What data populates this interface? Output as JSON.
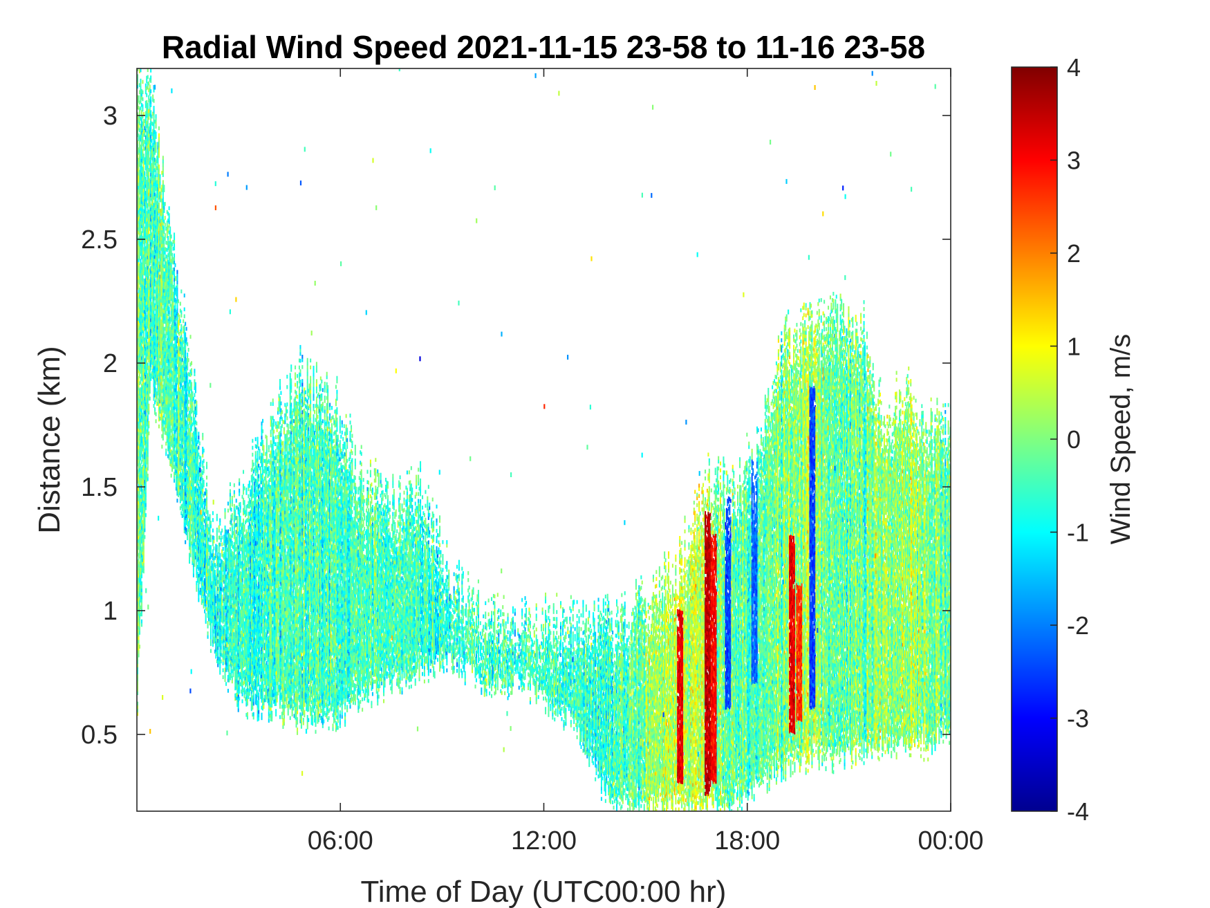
{
  "chart_data": {
    "type": "heatmap",
    "title": "Radial Wind Speed 2021-11-15 23-58 to 11-16 23-58",
    "xlabel": "Time of Day (UTC00:00 hr)",
    "ylabel": "Distance (km)",
    "colorbar_label": "Wind Speed, m/s",
    "x_ticks": [
      {
        "value": 6,
        "label": "06:00"
      },
      {
        "value": 12,
        "label": "12:00"
      },
      {
        "value": 18,
        "label": "18:00"
      },
      {
        "value": 24,
        "label": "00:00"
      }
    ],
    "y_ticks": [
      {
        "value": 0.5,
        "label": "0.5"
      },
      {
        "value": 1,
        "label": "1"
      },
      {
        "value": 1.5,
        "label": "1.5"
      },
      {
        "value": 2,
        "label": "2"
      },
      {
        "value": 2.5,
        "label": "2.5"
      },
      {
        "value": 3,
        "label": "3"
      }
    ],
    "colorbar_ticks": [
      {
        "value": -4,
        "label": "-4"
      },
      {
        "value": -3,
        "label": "-3"
      },
      {
        "value": -2,
        "label": "-2"
      },
      {
        "value": -1,
        "label": "-1"
      },
      {
        "value": 0,
        "label": "0"
      },
      {
        "value": 1,
        "label": "1"
      },
      {
        "value": 2,
        "label": "2"
      },
      {
        "value": 3,
        "label": "3"
      },
      {
        "value": 4,
        "label": "4"
      }
    ],
    "xlim": [
      0,
      24
    ],
    "ylim": [
      0.19,
      3.19
    ],
    "clim": [
      -4,
      4
    ],
    "colormap": "jet",
    "grid": false,
    "data_envelope": [
      {
        "time": 0.0,
        "bottom_km": 0.6,
        "top_km": 3.15,
        "mean_speed": -0.6
      },
      {
        "time": 0.4,
        "bottom_km": 1.9,
        "top_km": 3.1,
        "mean_speed": -0.3
      },
      {
        "time": 2.3,
        "bottom_km": 0.8,
        "top_km": 1.3,
        "mean_speed": -0.8
      },
      {
        "time": 3.2,
        "bottom_km": 0.6,
        "top_km": 1.5,
        "mean_speed": -0.6
      },
      {
        "time": 4.0,
        "bottom_km": 0.6,
        "top_km": 1.8,
        "mean_speed": -0.6
      },
      {
        "time": 4.8,
        "bottom_km": 0.55,
        "top_km": 1.95,
        "mean_speed": -0.4
      },
      {
        "time": 5.8,
        "bottom_km": 0.55,
        "top_km": 1.85,
        "mean_speed": -0.4
      },
      {
        "time": 6.6,
        "bottom_km": 0.65,
        "top_km": 1.55,
        "mean_speed": -0.5
      },
      {
        "time": 7.6,
        "bottom_km": 0.7,
        "top_km": 1.45,
        "mean_speed": -0.5
      },
      {
        "time": 8.4,
        "bottom_km": 0.75,
        "top_km": 1.5,
        "mean_speed": -0.6
      },
      {
        "time": 9.2,
        "bottom_km": 0.8,
        "top_km": 1.15,
        "mean_speed": -0.6
      },
      {
        "time": 10.2,
        "bottom_km": 0.7,
        "top_km": 1.0,
        "mean_speed": -0.5
      },
      {
        "time": 11.4,
        "bottom_km": 0.7,
        "top_km": 0.95,
        "mean_speed": -0.5
      },
      {
        "time": 12.8,
        "bottom_km": 0.55,
        "top_km": 0.95,
        "mean_speed": -0.6
      },
      {
        "time": 14.0,
        "bottom_km": 0.2,
        "top_km": 0.95,
        "mean_speed": -0.5
      },
      {
        "time": 15.2,
        "bottom_km": 0.2,
        "top_km": 1.05,
        "mean_speed": 0.2
      },
      {
        "time": 16.0,
        "bottom_km": 0.2,
        "top_km": 1.2,
        "mean_speed": 0.6
      },
      {
        "time": 16.8,
        "bottom_km": 0.2,
        "top_km": 1.55,
        "mean_speed": 0.4
      },
      {
        "time": 17.6,
        "bottom_km": 0.2,
        "top_km": 1.5,
        "mean_speed": -0.3
      },
      {
        "time": 18.4,
        "bottom_km": 0.3,
        "top_km": 1.7,
        "mean_speed": -0.4
      },
      {
        "time": 19.0,
        "bottom_km": 0.35,
        "top_km": 2.1,
        "mean_speed": 0.0
      },
      {
        "time": 19.8,
        "bottom_km": 0.4,
        "top_km": 2.15,
        "mean_speed": 0.4
      },
      {
        "time": 20.6,
        "bottom_km": 0.4,
        "top_km": 2.2,
        "mean_speed": -0.2
      },
      {
        "time": 21.4,
        "bottom_km": 0.4,
        "top_km": 2.15,
        "mean_speed": -0.3
      },
      {
        "time": 22.0,
        "bottom_km": 0.45,
        "top_km": 1.75,
        "mean_speed": 0.1
      },
      {
        "time": 22.6,
        "bottom_km": 0.45,
        "top_km": 1.9,
        "mean_speed": 0.2
      },
      {
        "time": 23.3,
        "bottom_km": 0.45,
        "top_km": 1.75,
        "mean_speed": -0.1
      },
      {
        "time": 24.0,
        "bottom_km": 0.5,
        "top_km": 1.75,
        "mean_speed": -0.2
      }
    ],
    "strong_positive_bands": [
      {
        "time": 16.0,
        "bottom_km": 0.3,
        "top_km": 1.0,
        "speed": 3.2
      },
      {
        "time": 16.8,
        "bottom_km": 0.25,
        "top_km": 1.4,
        "speed": 3.5
      },
      {
        "time": 17.0,
        "bottom_km": 0.3,
        "top_km": 1.3,
        "speed": 3.0
      },
      {
        "time": 19.3,
        "bottom_km": 0.5,
        "top_km": 1.3,
        "speed": 3.2
      },
      {
        "time": 19.5,
        "bottom_km": 0.55,
        "top_km": 1.1,
        "speed": 2.6
      }
    ],
    "strong_negative_bands": [
      {
        "time": 17.4,
        "bottom_km": 0.6,
        "top_km": 1.45,
        "speed": -2.4
      },
      {
        "time": 18.2,
        "bottom_km": 0.7,
        "top_km": 1.6,
        "speed": -2.2
      },
      {
        "time": 19.9,
        "bottom_km": 0.6,
        "top_km": 1.9,
        "speed": -2.5
      }
    ]
  }
}
